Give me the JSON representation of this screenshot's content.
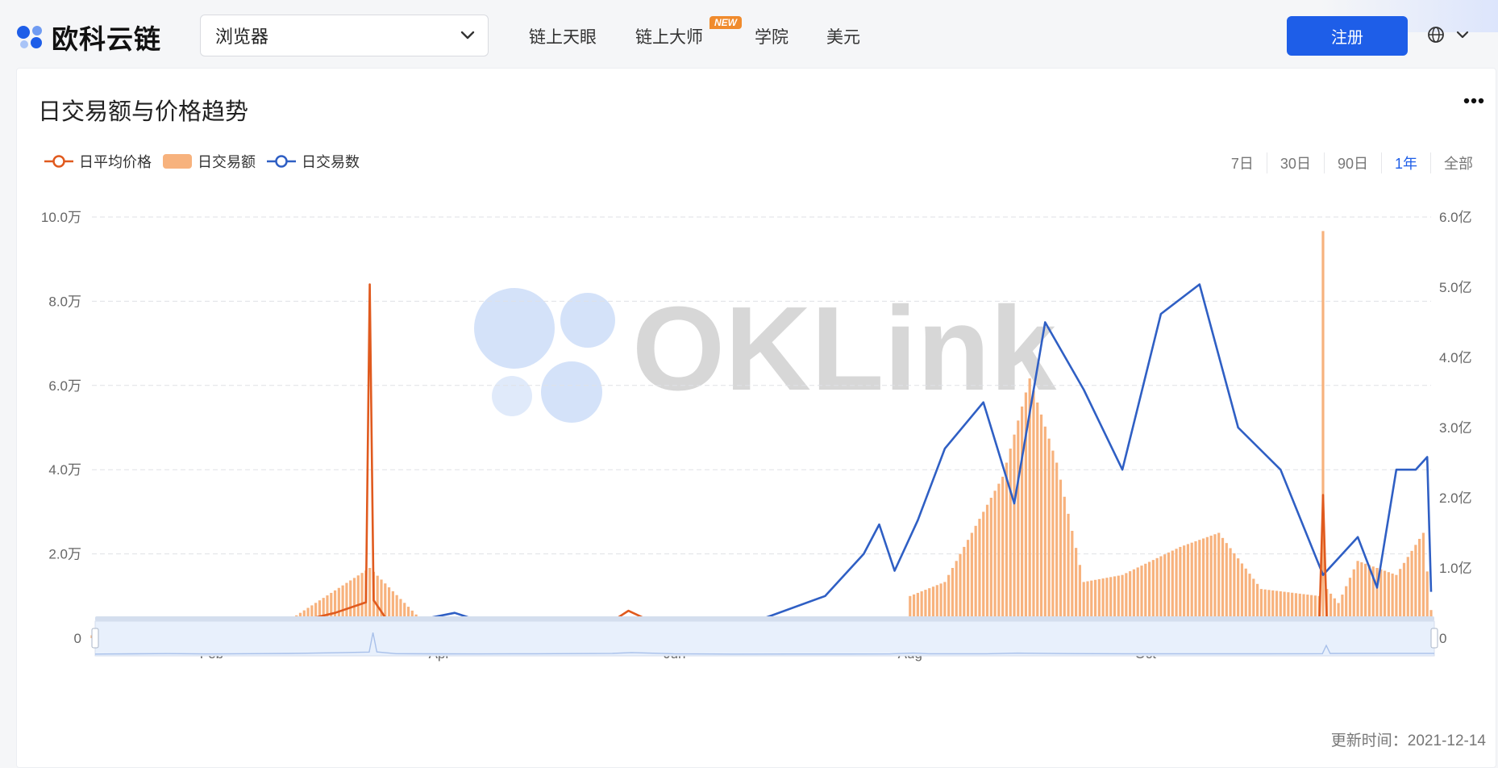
{
  "header": {
    "brand": "欧科云链",
    "search_value": "浏览器",
    "nav": [
      "链上天眼",
      "链上大师",
      "学院",
      "美元"
    ],
    "nav_badge": "NEW",
    "register_label": "注册",
    "accent": "#1e5ee8"
  },
  "card": {
    "title": "日交易额与价格趋势",
    "ranges": [
      "7日",
      "30日",
      "90日",
      "1年",
      "全部"
    ],
    "active_range": "1年",
    "updated_label": "更新时间：2021-12-14"
  },
  "chart_data": {
    "type": "line",
    "watermark": "OKLink",
    "legend_placement": "top-left",
    "grid": true,
    "x_ticks": [
      "Feb",
      "Apr",
      "Jun",
      "Aug",
      "Oct"
    ],
    "x_range": [
      "2021-01-01",
      "2021-12-14"
    ],
    "y_left": {
      "ticks": [
        "0",
        "2.0万",
        "4.0万",
        "6.0万",
        "8.0万",
        "10.0万"
      ],
      "range": [
        0,
        100000
      ]
    },
    "y_right": {
      "ticks": [
        "0",
        "1.0亿",
        "2.0亿",
        "3.0亿",
        "4.0亿",
        "5.0亿",
        "6.0亿"
      ],
      "range": [
        0,
        600000000
      ]
    },
    "series": [
      {
        "name": "日平均价格",
        "kind": "line",
        "axis": "left",
        "color": "#e05a1e",
        "points": [
          [
            "2021-01-01",
            500
          ],
          [
            "2021-01-10",
            1600
          ],
          [
            "2021-01-20",
            2500
          ],
          [
            "2021-02-01",
            1200
          ],
          [
            "2021-02-10",
            2300
          ],
          [
            "2021-02-20",
            3200
          ],
          [
            "2021-03-05",
            6000
          ],
          [
            "2021-03-13",
            8500
          ],
          [
            "2021-03-14",
            84000
          ],
          [
            "2021-03-15",
            9000
          ],
          [
            "2021-03-20",
            2200
          ],
          [
            "2021-03-31",
            1600
          ],
          [
            "2021-04-10",
            1200
          ],
          [
            "2021-04-25",
            1800
          ],
          [
            "2021-05-05",
            2500
          ],
          [
            "2021-05-15",
            3500
          ],
          [
            "2021-05-20",
            6500
          ],
          [
            "2021-05-31",
            1800
          ],
          [
            "2021-06-15",
            600
          ],
          [
            "2021-06-30",
            800
          ],
          [
            "2021-07-15",
            900
          ],
          [
            "2021-07-26",
            1200
          ],
          [
            "2021-08-01",
            4500
          ],
          [
            "2021-08-05",
            1800
          ],
          [
            "2021-08-20",
            2000
          ],
          [
            "2021-08-28",
            4500
          ],
          [
            "2021-09-10",
            2500
          ],
          [
            "2021-09-25",
            1800
          ],
          [
            "2021-10-15",
            1800
          ],
          [
            "2021-10-31",
            2000
          ],
          [
            "2021-11-15",
            2200
          ],
          [
            "2021-11-16",
            34000
          ],
          [
            "2021-11-17",
            3000
          ],
          [
            "2021-11-30",
            3500
          ],
          [
            "2021-12-14",
            3500
          ]
        ]
      },
      {
        "name": "日交易额",
        "kind": "bar",
        "axis": "right",
        "color": "#f7b27d",
        "points": [
          [
            "2021-01-01",
            4000000
          ],
          [
            "2021-02-15",
            4000000
          ],
          [
            "2021-03-14",
            100000000
          ],
          [
            "2021-03-31",
            6000000
          ],
          [
            "2021-04-30",
            8000000
          ],
          [
            "2021-05-15",
            20000000
          ],
          [
            "2021-05-31",
            6000000
          ],
          [
            "2021-06-30",
            8000000
          ],
          [
            "2021-07-15",
            12000000
          ],
          [
            "2021-07-31",
            20000000
          ],
          [
            "2021-08-01",
            60000000
          ],
          [
            "2021-08-10",
            80000000
          ],
          [
            "2021-08-25",
            230000000
          ],
          [
            "2021-09-01",
            370000000
          ],
          [
            "2021-09-08",
            250000000
          ],
          [
            "2021-09-15",
            80000000
          ],
          [
            "2021-09-25",
            90000000
          ],
          [
            "2021-10-10",
            130000000
          ],
          [
            "2021-10-20",
            150000000
          ],
          [
            "2021-10-31",
            70000000
          ],
          [
            "2021-11-15",
            60000000
          ],
          [
            "2021-11-16",
            580000000
          ],
          [
            "2021-11-17",
            70000000
          ],
          [
            "2021-11-20",
            50000000
          ],
          [
            "2021-11-25",
            110000000
          ],
          [
            "2021-12-05",
            90000000
          ],
          [
            "2021-12-12",
            150000000
          ],
          [
            "2021-12-14",
            40000000
          ]
        ]
      },
      {
        "name": "日交易数",
        "kind": "line",
        "axis": "left",
        "color": "#2f5fc4",
        "points": [
          [
            "2021-01-01",
            200
          ],
          [
            "2021-01-31",
            500
          ],
          [
            "2021-02-28",
            1000
          ],
          [
            "2021-03-10",
            2000
          ],
          [
            "2021-03-25",
            4000
          ],
          [
            "2021-04-05",
            6000
          ],
          [
            "2021-04-15",
            3000
          ],
          [
            "2021-05-01",
            3000
          ],
          [
            "2021-05-15",
            1500
          ],
          [
            "2021-05-31",
            900
          ],
          [
            "2021-06-15",
            2500
          ],
          [
            "2021-06-25",
            5000
          ],
          [
            "2021-07-10",
            10000
          ],
          [
            "2021-07-20",
            20000
          ],
          [
            "2021-07-24",
            27000
          ],
          [
            "2021-07-28",
            16000
          ],
          [
            "2021-08-03",
            28000
          ],
          [
            "2021-08-10",
            45000
          ],
          [
            "2021-08-20",
            56000
          ],
          [
            "2021-08-28",
            32000
          ],
          [
            "2021-09-05",
            75000
          ],
          [
            "2021-09-15",
            59000
          ],
          [
            "2021-09-25",
            40000
          ],
          [
            "2021-10-05",
            77000
          ],
          [
            "2021-10-15",
            84000
          ],
          [
            "2021-10-25",
            50000
          ],
          [
            "2021-11-05",
            40000
          ],
          [
            "2021-11-16",
            15000
          ],
          [
            "2021-11-25",
            24000
          ],
          [
            "2021-11-30",
            12000
          ],
          [
            "2021-12-05",
            40000
          ],
          [
            "2021-12-10",
            40000
          ],
          [
            "2021-12-13",
            43000
          ],
          [
            "2021-12-14",
            11000
          ]
        ]
      }
    ],
    "slider": {
      "start": 0,
      "end": 1
    }
  }
}
